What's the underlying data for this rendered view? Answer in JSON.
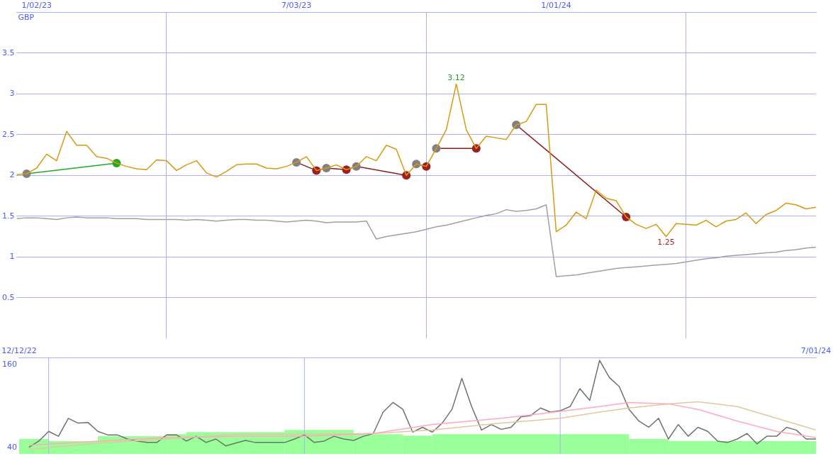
{
  "chart_data": [
    {
      "type": "line",
      "ylabel": "GBP",
      "grid": true,
      "x": [
        "2022-12-19",
        "2022-12-26",
        "2023-01-02",
        "2023-01-09",
        "2023-01-16",
        "2023-01-23",
        "2023-01-30",
        "2023-02-06",
        "2023-02-13",
        "2023-02-20",
        "2023-02-27",
        "2023-03-06",
        "2023-03-13",
        "2023-03-20",
        "2023-03-27",
        "2023-04-03",
        "2023-04-10",
        "2023-04-17",
        "2023-04-24",
        "2023-05-01",
        "2023-05-08",
        "2023-05-15",
        "2023-05-22",
        "2023-05-29",
        "2023-06-05",
        "2023-06-12",
        "2023-06-19",
        "2023-06-26",
        "2023-07-03",
        "2023-07-10",
        "2023-07-17",
        "2023-07-24",
        "2023-07-31",
        "2023-08-07",
        "2023-08-14",
        "2023-08-21",
        "2023-08-28",
        "2023-09-04",
        "2023-09-11",
        "2023-09-18",
        "2023-09-25",
        "2023-10-02",
        "2023-10-09",
        "2023-10-16",
        "2023-10-23",
        "2023-10-30",
        "2023-11-06",
        "2023-11-13",
        "2023-11-20",
        "2023-11-27",
        "2023-12-04",
        "2023-12-11",
        "2023-12-18",
        "2023-12-25",
        "2024-01-01",
        "2024-01-08",
        "2024-01-15",
        "2024-01-22",
        "2024-01-29",
        "2024-02-05",
        "2024-02-12",
        "2024-02-19",
        "2024-02-26",
        "2024-03-04",
        "2024-03-11",
        "2024-03-18",
        "2024-03-25",
        "2024-04-01",
        "2024-04-08",
        "2024-04-15",
        "2024-04-22",
        "2024-04-29",
        "2024-05-06",
        "2024-05-13",
        "2024-05-20",
        "2024-05-27",
        "2024-06-03",
        "2024-06-10",
        "2024-06-17",
        "2024-06-24",
        "2024-07-01"
      ],
      "xlim": [
        "2022-12-19",
        "2024-07-01"
      ],
      "xticks": [
        {
          "value": "2023-01-02",
          "label": "1/02/23"
        },
        {
          "value": "2023-07-03",
          "label": "7/03/23"
        },
        {
          "value": "2024-01-01",
          "label": "1/01/24"
        }
      ],
      "ylim": [
        0,
        4
      ],
      "yticks": [
        0.5,
        1,
        1.5,
        2,
        2.5,
        3,
        3.5
      ],
      "annotations": [
        {
          "text": "3.12",
          "x": "2023-10-23",
          "y": 3.12
        },
        {
          "text": "1.25",
          "x": "2024-03-18",
          "y": 1.25
        }
      ],
      "series": [
        {
          "color": "#a0a0a0",
          "marker": "none",
          "values": [
            1.47,
            1.48,
            1.48,
            1.47,
            1.46,
            1.48,
            1.49,
            1.48,
            1.48,
            1.48,
            1.47,
            1.47,
            1.47,
            1.46,
            1.46,
            1.46,
            1.46,
            1.45,
            1.46,
            1.45,
            1.44,
            1.45,
            1.46,
            1.46,
            1.45,
            1.45,
            1.44,
            1.43,
            1.44,
            1.45,
            1.44,
            1.42,
            1.43,
            1.43,
            1.43,
            1.44,
            1.22,
            1.25,
            1.27,
            1.29,
            1.31,
            1.34,
            1.37,
            1.39,
            1.42,
            1.45,
            1.48,
            1.51,
            1.53,
            1.58,
            1.56,
            1.57,
            1.59,
            1.64,
            0.76,
            0.77,
            0.78,
            0.8,
            0.82,
            0.84,
            0.86,
            0.87,
            0.88,
            0.89,
            0.9,
            0.91,
            0.92,
            0.94,
            0.96,
            0.98,
            0.99,
            1.01,
            1.02,
            1.03,
            1.04,
            1.05,
            1.06,
            1.08,
            1.09,
            1.11,
            1.12
          ]
        },
        {
          "color": "#d89a10",
          "marker": "none",
          "values": [
            2.01,
            2.02,
            2.09,
            2.26,
            2.18,
            2.54,
            2.37,
            2.37,
            2.23,
            2.21,
            2.15,
            2.11,
            2.08,
            2.07,
            2.19,
            2.18,
            2.06,
            2.13,
            2.18,
            2.03,
            1.98,
            2.05,
            2.13,
            2.14,
            2.14,
            2.09,
            2.08,
            2.11,
            2.16,
            2.23,
            2.06,
            2.09,
            2.13,
            2.07,
            2.11,
            2.23,
            2.18,
            2.37,
            2.32,
            2.0,
            2.14,
            2.11,
            2.33,
            2.56,
            3.12,
            2.56,
            2.33,
            2.48,
            2.46,
            2.44,
            2.62,
            2.66,
            2.87,
            2.87,
            1.31,
            1.39,
            1.55,
            1.47,
            1.82,
            1.72,
            1.69,
            1.49,
            1.4,
            1.35,
            1.4,
            1.25,
            1.41,
            1.4,
            1.39,
            1.45,
            1.37,
            1.44,
            1.46,
            1.54,
            1.41,
            1.52,
            1.57,
            1.66,
            1.64,
            1.59,
            1.61
          ]
        },
        {
          "color": "#22aa22",
          "marker": "circle",
          "x": [
            "2022-12-26",
            "2023-02-27"
          ],
          "values": [
            2.02,
            2.15
          ],
          "colors": [
            "#808080",
            "#22aa22"
          ]
        },
        {
          "color": "#8b1a1a",
          "marker": "circle",
          "x": [
            "2023-07-03",
            "2023-07-17",
            "2023-07-24",
            "2023-08-07",
            "2023-08-14",
            "2023-09-18"
          ],
          "values": [
            2.16,
            2.06,
            2.09,
            2.07,
            2.11,
            2.0
          ],
          "colors": [
            "#808080",
            "#a02020",
            "#808080",
            "#a02020",
            "#808080",
            "#a02020"
          ]
        },
        {
          "color": "#8b1a1a",
          "marker": "circle",
          "x": [
            "2023-09-25",
            "2023-10-02"
          ],
          "values": [
            2.14,
            2.11
          ],
          "colors": [
            "#808080",
            "#a02020"
          ]
        },
        {
          "color": "#8b1a1a",
          "marker": "circle",
          "x": [
            "2023-10-09",
            "2023-11-06"
          ],
          "values": [
            2.33,
            2.33
          ],
          "colors": [
            "#808080",
            "#a02020"
          ]
        },
        {
          "color": "#8b1a1a",
          "marker": "circle",
          "x": [
            "2023-12-04",
            "2024-02-19"
          ],
          "values": [
            2.62,
            1.49
          ],
          "colors": [
            "#808080",
            "#a02020"
          ]
        }
      ]
    },
    {
      "type": "histogram",
      "color": "#99ff99",
      "bins": [
        "2022-12-12",
        "2023-01-02",
        "2023-02-06",
        "2023-03-27",
        "2023-04-10",
        "2023-06-19",
        "2023-08-07",
        "2023-09-11",
        "2023-10-02",
        "2024-02-19",
        "2024-03-18",
        "2024-07-01"
      ],
      "values": [
        52,
        49,
        56,
        59,
        62,
        65,
        59,
        57,
        59,
        52,
        49
      ],
      "ref_lines": [
        {
          "axis": "x",
          "value": "2023-01-02"
        },
        {
          "axis": "x",
          "value": "2023-07-03"
        },
        {
          "axis": "x",
          "value": "2024-01-01"
        }
      ],
      "x": [
        "2022-12-19",
        "2022-12-26",
        "2023-01-02",
        "2023-01-09",
        "2023-01-16",
        "2023-01-23",
        "2023-01-30",
        "2023-02-06",
        "2023-02-13",
        "2023-02-20",
        "2023-02-27",
        "2023-03-06",
        "2023-03-13",
        "2023-03-20",
        "2023-03-27",
        "2023-04-03",
        "2023-04-10",
        "2023-04-17",
        "2023-04-24",
        "2023-05-01",
        "2023-05-08",
        "2023-05-15",
        "2023-05-22",
        "2023-05-29",
        "2023-06-05",
        "2023-06-12",
        "2023-06-19",
        "2023-06-26",
        "2023-07-03",
        "2023-07-10",
        "2023-07-17",
        "2023-07-24",
        "2023-07-31",
        "2023-08-07",
        "2023-08-14",
        "2023-08-21",
        "2023-08-28",
        "2023-09-04",
        "2023-09-11",
        "2023-09-18",
        "2023-09-25",
        "2023-10-02",
        "2023-10-09",
        "2023-10-16",
        "2023-10-23",
        "2023-10-30",
        "2023-11-06",
        "2023-11-13",
        "2023-11-20",
        "2023-11-27",
        "2023-12-04",
        "2023-12-11",
        "2023-12-18",
        "2023-12-25",
        "2024-01-01",
        "2024-01-08",
        "2024-01-15",
        "2024-01-22",
        "2024-01-29",
        "2024-02-05",
        "2024-02-12",
        "2024-02-19",
        "2024-02-26",
        "2024-03-04",
        "2024-03-11",
        "2024-03-18",
        "2024-03-25",
        "2024-04-01",
        "2024-04-08",
        "2024-04-15",
        "2024-04-22",
        "2024-04-29",
        "2024-05-06",
        "2024-05-13",
        "2024-05-20",
        "2024-05-27",
        "2024-06-03",
        "2024-06-10",
        "2024-06-17",
        "2024-06-24",
        "2024-07-01"
      ],
      "xlim": [
        "2022-12-12",
        "2024-07-01"
      ],
      "xticks": [
        {
          "value": "2022-12-12",
          "label": "12/12/22"
        },
        {
          "value": "2024-07-01",
          "label": "7/01/24"
        }
      ],
      "ylim": [
        30,
        170
      ],
      "yticks": [
        40,
        160
      ],
      "series": [
        {
          "type": "line",
          "color": "#ffaabb",
          "x": [
            "2022-12-19",
            "2023-02-06",
            "2023-03-27",
            "2023-05-15",
            "2023-07-03",
            "2023-08-21",
            "2023-10-02",
            "2023-11-20",
            "2024-01-01",
            "2024-01-29",
            "2024-02-19",
            "2024-03-18",
            "2024-04-08",
            "2024-05-06",
            "2024-06-03",
            "2024-07-01"
          ],
          "values": [
            43,
            49,
            54,
            56,
            56,
            60,
            73,
            82,
            92,
            99,
            105,
            103,
            95,
            78,
            63,
            54
          ]
        },
        {
          "type": "line",
          "color": "#e0c8a0",
          "x": [
            "2022-12-19",
            "2023-02-06",
            "2023-03-27",
            "2023-05-15",
            "2023-07-03",
            "2023-08-21",
            "2023-10-02",
            "2023-11-20",
            "2024-01-01",
            "2024-01-29",
            "2024-02-19",
            "2024-03-18",
            "2024-04-08",
            "2024-05-06",
            "2024-06-03",
            "2024-07-01"
          ],
          "values": [
            37,
            46,
            52,
            59,
            59,
            60,
            65,
            75,
            82,
            91,
            97,
            103,
            106,
            99,
            82,
            65
          ]
        },
        {
          "type": "line",
          "color": "#707070",
          "values": [
            40,
            49,
            63,
            56,
            82,
            75,
            76,
            63,
            58,
            58,
            52,
            49,
            47,
            47,
            58,
            58,
            49,
            56,
            47,
            52,
            42,
            46,
            50,
            47,
            47,
            47,
            47,
            52,
            58,
            47,
            49,
            56,
            52,
            50,
            56,
            60,
            91,
            105,
            95,
            62,
            69,
            62,
            75,
            95,
            140,
            99,
            65,
            73,
            66,
            69,
            84,
            86,
            97,
            91,
            93,
            99,
            125,
            108,
            166,
            141,
            128,
            95,
            78,
            69,
            82,
            52,
            73,
            56,
            69,
            63,
            49,
            47,
            52,
            60,
            45,
            56,
            56,
            69,
            65,
            52,
            52
          ]
        }
      ]
    }
  ]
}
